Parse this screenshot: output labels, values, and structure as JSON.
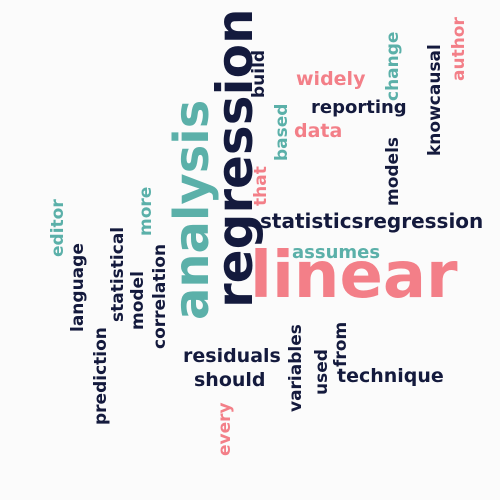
{
  "word_cloud": {
    "colors": {
      "navy": "#141a3d",
      "pink": "#f37f88",
      "teal": "#5bb0a9",
      "background": "#fbfbfb"
    },
    "words": {
      "linear": "linear",
      "regression": "regression",
      "analysis": "analysis",
      "statisticsregression": "statisticsregression",
      "assumes": "assumes",
      "reporting": "reporting",
      "widely": "widely",
      "data": "data",
      "residuals": "residuals",
      "should": "should",
      "technique": "technique",
      "build": "build",
      "based": "based",
      "that": "that",
      "change": "change",
      "models": "models",
      "knowcausal": "knowcausal",
      "author": "author",
      "more": "more",
      "editor": "editor",
      "language": "language",
      "prediction": "prediction",
      "statistical": "statistical",
      "model": "model",
      "correlation": "correlation",
      "every": "every",
      "variables": "variables",
      "used": "used",
      "from": "from"
    }
  }
}
